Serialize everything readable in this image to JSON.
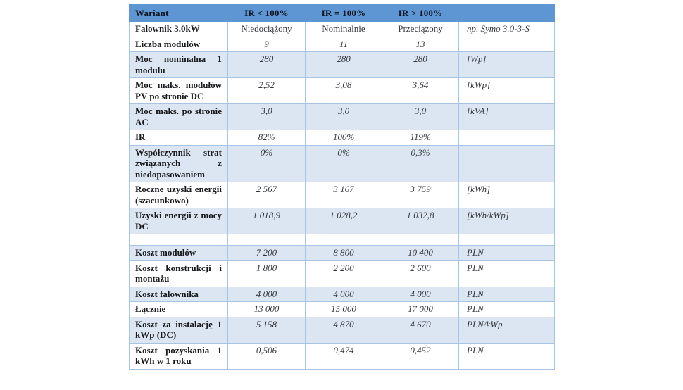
{
  "colors": {
    "header_bg": "#5d96d2",
    "header_text": "#0e1420",
    "row_shade_bg": "#dce6f2",
    "border": "#a6c5e4",
    "label_text": "#17191c",
    "value_text": "#35383d",
    "page_bg": "#ffffff"
  },
  "table": {
    "header": [
      "Wariant",
      "IR < 100%",
      "IR = 100%",
      "IR > 100%",
      ""
    ],
    "rows": [
      {
        "label": "Falownik 3.0kW",
        "values": [
          "Niedociążony",
          "Nominalnie",
          "Przeciążony"
        ],
        "unit": "np. Symo 3.0-3-S",
        "shaded": false
      },
      {
        "label": "Liczba modułów",
        "values": [
          "9",
          "11",
          "13"
        ],
        "unit": "",
        "shaded": false
      },
      {
        "label": "Moc nominalna 1 modulu",
        "values": [
          "280",
          "280",
          "280"
        ],
        "unit": "[Wp]",
        "shaded": true
      },
      {
        "label": "Moc maks. modułów PV po stronie DC",
        "values": [
          "2,52",
          "3,08",
          "3,64"
        ],
        "unit": "[kWp]",
        "shaded": false
      },
      {
        "label": "Moc maks. po stronie AC",
        "values": [
          "3,0",
          "3,0",
          "3,0"
        ],
        "unit": "[kVA]",
        "shaded": true
      },
      {
        "label": "IR",
        "values": [
          "82%",
          "100%",
          "119%"
        ],
        "unit": "",
        "shaded": false
      },
      {
        "label": "Współczynnik strat związanych z niedopasowaniem",
        "values": [
          "0%",
          "0%",
          "0,3%"
        ],
        "unit": "",
        "shaded": true
      },
      {
        "label": "Roczne uzyski energii (szacunkowo)",
        "values": [
          "2 567",
          "3 167",
          "3 759"
        ],
        "unit": "[kWh]",
        "shaded": false
      },
      {
        "label": "Uzyski energii z mocy DC",
        "values": [
          "1 018,9",
          "1 028,2",
          "1 032,8"
        ],
        "unit": "[kWh/kWp]",
        "shaded": true
      },
      {
        "label": "",
        "values": [
          "",
          "",
          ""
        ],
        "unit": "",
        "shaded": false,
        "spacer": true
      },
      {
        "label": "Koszt modułów",
        "values": [
          "7 200",
          "8 800",
          "10 400"
        ],
        "unit": "PLN",
        "shaded": true
      },
      {
        "label": "Koszt konstrukcji i montażu",
        "values": [
          "1 800",
          "2 200",
          "2 600"
        ],
        "unit": "PLN",
        "shaded": false
      },
      {
        "label": "Koszt falownika",
        "values": [
          "4 000",
          "4 000",
          "4 000"
        ],
        "unit": "PLN",
        "shaded": true
      },
      {
        "label": "Łącznie",
        "values": [
          "13 000",
          "15 000",
          "17 000"
        ],
        "unit": "PLN",
        "shaded": false
      },
      {
        "label": "Koszt za instalację 1 kWp (DC)",
        "values": [
          "5 158",
          "4 870",
          "4 670"
        ],
        "unit": "PLN/kWp",
        "shaded": true
      },
      {
        "label": "Koszt pozyskania 1 kWh w 1 roku",
        "values": [
          "0,506",
          "0,474",
          "0,452"
        ],
        "unit": "PLN",
        "shaded": false
      }
    ]
  }
}
